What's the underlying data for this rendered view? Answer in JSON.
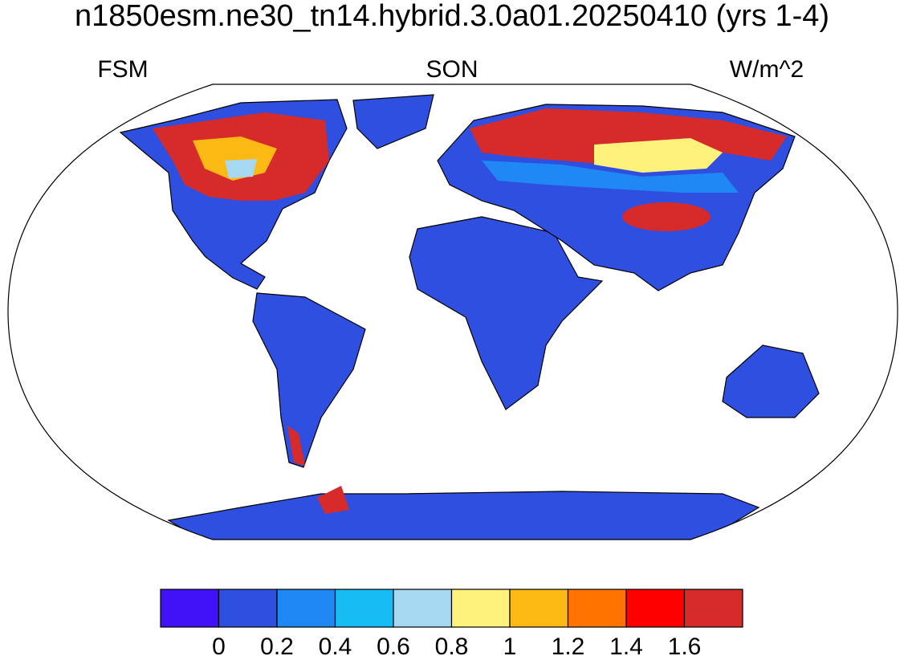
{
  "title": "n1850esm.ne30_tn14.hybrid.3.0a01.20250410 (yrs 1-4)",
  "left_label": "FSM",
  "center_label": "SON",
  "right_label": "W/m^2",
  "colorbar": {
    "colors": [
      "#3f12f8",
      "#2f4fe0",
      "#1f88f4",
      "#16bcf3",
      "#a6d8f2",
      "#fff27c",
      "#fdb913",
      "#ff7400",
      "#ff0000",
      "#d72b2b"
    ],
    "levels": [
      0,
      0.2,
      0.4,
      0.6,
      0.8,
      1,
      1.2,
      1.4,
      1.6
    ]
  }
}
